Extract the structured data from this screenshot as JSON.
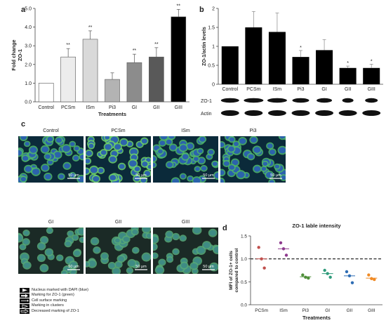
{
  "panels": {
    "a": {
      "letter": "a"
    },
    "b": {
      "letter": "b"
    },
    "c": {
      "letter": "c"
    },
    "d": {
      "letter": "d"
    }
  },
  "chart_data": [
    {
      "id": "a",
      "type": "bar",
      "title": "",
      "ylabel": "Fold change ZO-1",
      "ylabel_lines": [
        "Fold change",
        "ZO-1"
      ],
      "xlabel": "Treatments",
      "categories": [
        "Control",
        "PCSm",
        "ISm",
        "Pi3",
        "GI",
        "GII",
        "GIII"
      ],
      "values": [
        1.0,
        2.4,
        3.35,
        1.2,
        2.1,
        2.4,
        4.55
      ],
      "errors": [
        0,
        0.45,
        0.45,
        0.35,
        0.45,
        0.5,
        0.4
      ],
      "significance": [
        "",
        "**",
        "**",
        "",
        "**",
        "**",
        "**"
      ],
      "colors": [
        "#ffffff",
        "#ececec",
        "#d9d9d9",
        "#b3b3b3",
        "#8c8c8c",
        "#595959",
        "#000000"
      ],
      "ylim": [
        0,
        5.0
      ],
      "yticks": [
        "0.0",
        "1.0",
        "2.0",
        "3.0",
        "4.0",
        "5.0"
      ],
      "grid": false
    },
    {
      "id": "b",
      "type": "bar",
      "title": "",
      "ylabel": "ZO-1/actin levels",
      "xlabel": "",
      "categories": [
        "Control",
        "PCSm",
        "ISm",
        "Pi3",
        "GI",
        "GII",
        "GIII"
      ],
      "values": [
        1.0,
        1.5,
        1.38,
        0.72,
        0.9,
        0.43,
        0.43
      ],
      "errors": [
        0,
        0.42,
        0.5,
        0.17,
        0.28,
        0.05,
        0.1
      ],
      "significance": [
        "",
        "",
        "",
        "*",
        "",
        "*",
        "*"
      ],
      "colors": [
        "#000000",
        "#000000",
        "#000000",
        "#000000",
        "#000000",
        "#000000",
        "#000000"
      ],
      "ylim": [
        0,
        2.0
      ],
      "yticks": [
        "0",
        "0.5",
        "1",
        "1.5",
        "2"
      ],
      "blot_labels": [
        "ZO-1",
        "Actin"
      ],
      "grid": false
    },
    {
      "id": "d",
      "type": "scatter",
      "title": "ZO-1 lable intensity",
      "ylabel": "MFI of ZO-1+ cells compared to control",
      "ylabel_lines": [
        "MFI of ZO-1+ cells",
        "compared to control"
      ],
      "xlabel": "Treatments",
      "categories": [
        "PCSm",
        "ISm",
        "Pi3",
        "GI",
        "GII",
        "GIII"
      ],
      "points": [
        [
          1.25,
          1.0,
          0.8
        ],
        [
          1.35,
          1.22,
          1.08
        ],
        [
          0.65,
          0.6,
          0.58
        ],
        [
          0.75,
          0.68,
          0.6
        ],
        [
          0.72,
          0.63,
          0.48
        ],
        [
          0.65,
          0.57,
          0.55
        ]
      ],
      "means": [
        1.0,
        1.22,
        0.61,
        0.68,
        0.63,
        0.58
      ],
      "colors": [
        "#c0504d",
        "#8e3a8e",
        "#4f8f3a",
        "#2e9a7a",
        "#2e6db4",
        "#f08a24"
      ],
      "reference_line": 1.0,
      "ylim": [
        0.0,
        1.5
      ],
      "yticks": [
        "0.0",
        "0.5",
        "1.0",
        "1.5"
      ],
      "grid": false
    }
  ],
  "micrographs": {
    "row1": [
      {
        "label": "Control",
        "scale": "50 µm"
      },
      {
        "label": "PCSm",
        "scale": "50 µm"
      },
      {
        "label": "ISm",
        "scale": "50 µm"
      },
      {
        "label": "Pi3",
        "scale": "50 µm"
      }
    ],
    "row2": [
      {
        "label": "GI",
        "scale": "50 µm"
      },
      {
        "label": "GII",
        "scale": "50 µm"
      },
      {
        "label": "GIII",
        "scale": "50 µm"
      }
    ]
  },
  "legend": [
    {
      "icon": "arrowhead-icon",
      "text": "Nucleus marked with DAPI (blue)"
    },
    {
      "icon": "thick-arrow-icon",
      "text": "Marking for ZO-1 (green)"
    },
    {
      "icon": "thin-arrow-icon",
      "text": "Cell surface marking"
    },
    {
      "icon": "open-arrowhead-icon",
      "text": "Marking in clusters"
    },
    {
      "icon": "open-arrow-icon",
      "text": "Decreased marking of ZO-1"
    }
  ]
}
